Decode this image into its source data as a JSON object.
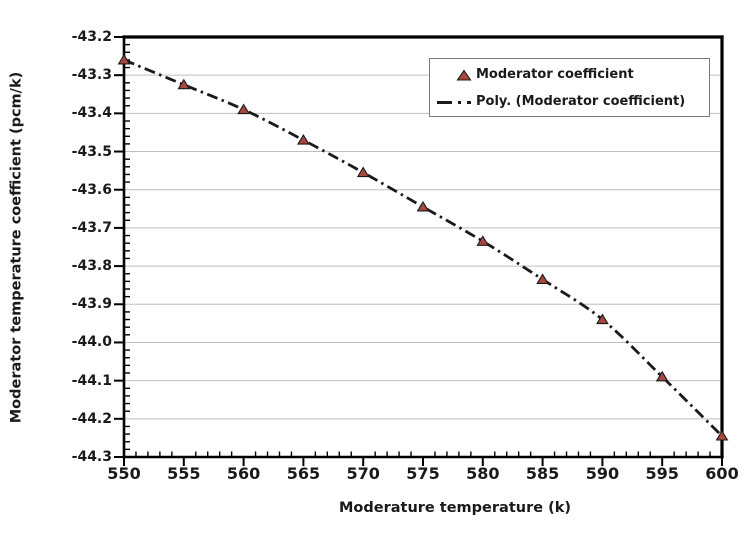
{
  "chart_data": {
    "type": "scatter",
    "title": "",
    "xlabel": "Moderature temperature (k)",
    "ylabel": "Moderator temperature coefficient (pcm/k)",
    "x": [
      550,
      555,
      560,
      565,
      570,
      575,
      580,
      585,
      590,
      595,
      600
    ],
    "series": [
      {
        "name": "Moderator coefficient",
        "type": "scatter",
        "marker": "triangle-up",
        "marker_fill": "#a8473e",
        "marker_stroke": "#1a1a1a",
        "values": [
          -43.26,
          -43.325,
          -43.39,
          -43.47,
          -43.555,
          -43.645,
          -43.735,
          -43.835,
          -43.94,
          -44.09,
          -44.245
        ]
      },
      {
        "name": "Poly. (Moderator coefficient)",
        "type": "trendline-polynomial",
        "line_style": "dash-dot",
        "line_color": "#1a1a1a"
      }
    ],
    "xlim": [
      550,
      600
    ],
    "ylim": [
      -44.3,
      -43.2
    ],
    "x_ticks": [
      550,
      555,
      560,
      565,
      570,
      575,
      580,
      585,
      590,
      595,
      600
    ],
    "y_ticks": [
      "-43.2",
      "-43.3",
      "-43.4",
      "-43.5",
      "-43.6",
      "-43.7",
      "-43.8",
      "-43.9",
      "-44.0",
      "-44.1",
      "-44.2",
      "-44.3"
    ],
    "x_minor_tick_step": 1,
    "y_minor_tick_step": 0.02,
    "grid": "horizontal-only",
    "gridline_color": "#bfbfbf",
    "axis_color": "#000000",
    "text_color": "#1a1a1a",
    "legend": {
      "position": "top-right-inside",
      "border_color": "#7a7a7a",
      "background": "#ffffff"
    }
  }
}
